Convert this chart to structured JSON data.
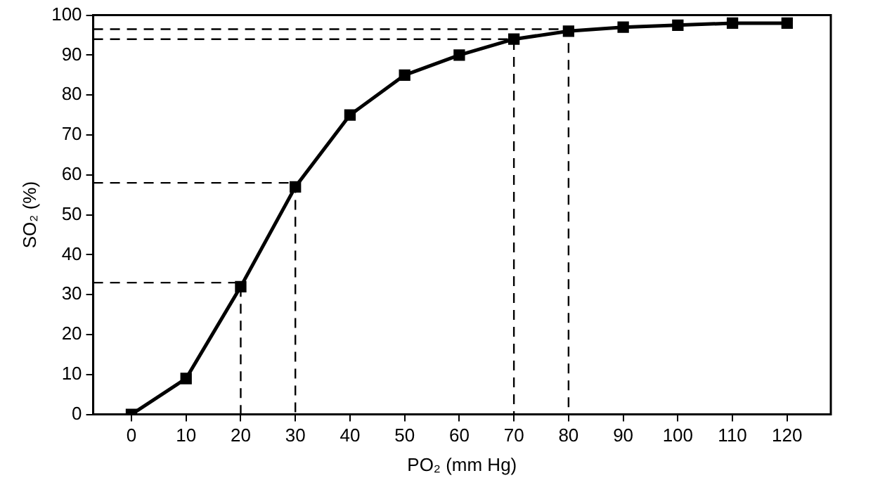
{
  "chart_data": {
    "type": "line",
    "xlabel": "PO₂ (mm Hg)",
    "ylabel": "SO₂ (%)",
    "xlim": [
      -7,
      128
    ],
    "ylim": [
      0,
      100
    ],
    "xticks": [
      0,
      10,
      20,
      30,
      40,
      50,
      60,
      70,
      80,
      90,
      100,
      110,
      120
    ],
    "yticks": [
      0,
      10,
      20,
      30,
      40,
      50,
      60,
      70,
      80,
      90,
      100
    ],
    "grid": false,
    "legend": false,
    "marker": "square",
    "line_style": "solid",
    "series": [
      {
        "color": "#000000",
        "x": [
          0,
          10,
          20,
          30,
          40,
          50,
          60,
          70,
          80,
          90,
          100,
          110,
          120
        ],
        "values": [
          0,
          9,
          32,
          57,
          75,
          85,
          90,
          94,
          96,
          97,
          97.5,
          98,
          98
        ]
      },
      {
        "type": "line",
        "color": "#000000",
        "marker": "none",
        "line_style": "dashed",
        "x": [
          -7,
          20,
          20
        ],
        "values": [
          33,
          33,
          0
        ]
      },
      {
        "type": "line",
        "color": "#000000",
        "marker": "none",
        "line_style": "dashed",
        "x": [
          -7,
          30,
          30
        ],
        "values": [
          58,
          58,
          0
        ]
      },
      {
        "type": "line",
        "color": "#000000",
        "marker": "none",
        "line_style": "dashed",
        "x": [
          -7,
          70,
          70
        ],
        "values": [
          94,
          94,
          0
        ]
      },
      {
        "type": "line",
        "color": "#000000",
        "marker": "none",
        "line_style": "dashed",
        "x": [
          -7,
          80,
          80
        ],
        "values": [
          96.5,
          96.5,
          0
        ]
      }
    ]
  }
}
